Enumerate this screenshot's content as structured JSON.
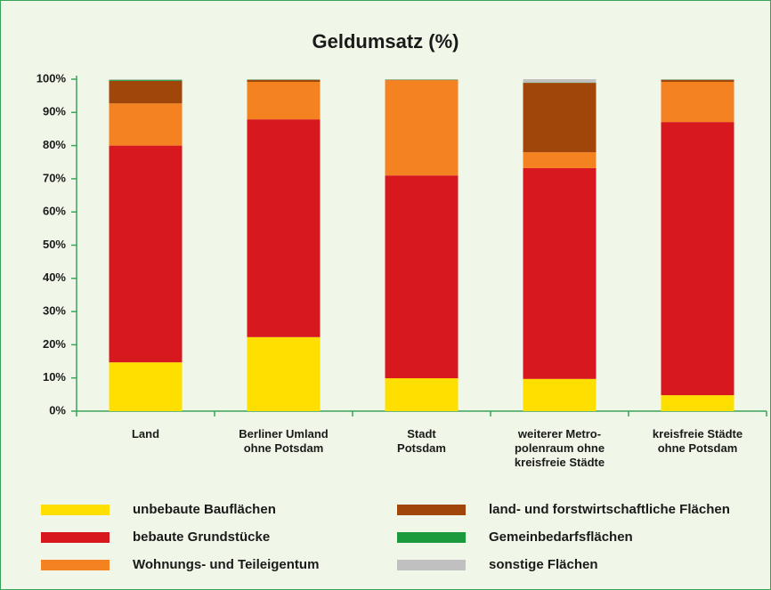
{
  "chart_data": {
    "type": "stacked_bar",
    "title": "Geldumsatz (%)",
    "categories": [
      "Land",
      "Berliner Umland\nohne Potsdam",
      "Stadt\nPotsdam",
      "weiterer Metro-\npolenraum ohne\nkreisfreie Städte",
      "kreisfreie Städte\nohne Potsdam"
    ],
    "series": [
      {
        "name": "unbebaute Bauflächen",
        "color": "#ffdf00",
        "values": [
          14.7,
          22.3,
          9.9,
          9.7,
          4.8
        ]
      },
      {
        "name": "bebaute Grundstücke",
        "color": "#d7191f",
        "values": [
          65.3,
          65.6,
          61.1,
          63.5,
          82.3
        ]
      },
      {
        "name": "Wohnungs- und Teileigentum",
        "color": "#f58220",
        "values": [
          12.7,
          11.3,
          28.7,
          4.8,
          12.1
        ]
      },
      {
        "name": "land- und forstwirtschaftliche Flächen",
        "color": "#a0460a",
        "values": [
          6.8,
          0.6,
          0.1,
          20.9,
          0.6
        ]
      },
      {
        "name": "Gemeinbedarfsflächen",
        "color": "#1a9a3c",
        "values": [
          0.3,
          0.1,
          0.1,
          0.1,
          0.1
        ]
      },
      {
        "name": "sonstige Flächen",
        "color": "#c0c0c0",
        "values": [
          0.2,
          0.1,
          0.1,
          1.0,
          0.1
        ]
      }
    ],
    "ylim": [
      0,
      100
    ],
    "yticks": [
      {
        "value": 0,
        "label": "0%"
      },
      {
        "value": 10,
        "label": "10%"
      },
      {
        "value": 20,
        "label": "20%"
      },
      {
        "value": 30,
        "label": "30%"
      },
      {
        "value": 40,
        "label": "40%"
      },
      {
        "value": 50,
        "label": "50%"
      },
      {
        "value": 60,
        "label": "60%"
      },
      {
        "value": 70,
        "label": "70%"
      },
      {
        "value": 80,
        "label": "80%"
      },
      {
        "value": 90,
        "label": "90%"
      },
      {
        "value": 100,
        "label": "100%"
      }
    ],
    "grid": false
  }
}
